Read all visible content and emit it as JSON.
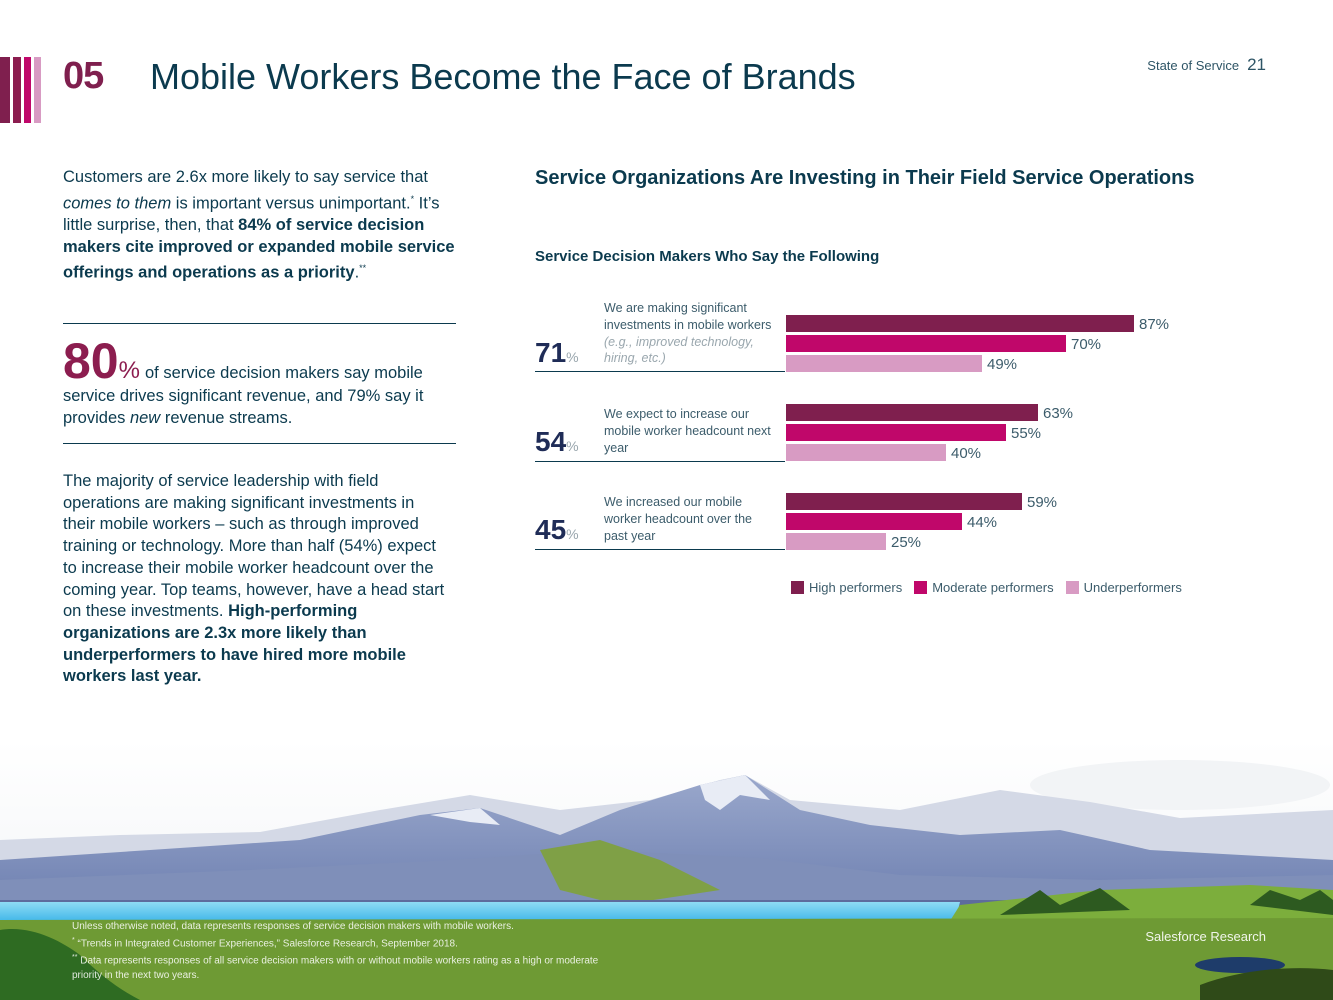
{
  "header": {
    "section_number": "05",
    "title": "Mobile Workers Become the Face of Brands",
    "running_head": "State of Service",
    "page_number": "21"
  },
  "intro": {
    "text1": "Customers are 2.6x more likely to say service that ",
    "text1_italic": "comes to them",
    "text1b": " is important versus unimportant.",
    "text1_mark": "*",
    "text2": " It’s little surprise, then, that ",
    "text2_bold": "84% of service decision makers cite improved or expanded mobile service offerings and operations as a priority",
    "text2_end": ".",
    "text2_mark": "**"
  },
  "stat": {
    "value": "80",
    "unit": "%",
    "text1": "of service decision makers say mobile service drives significant revenue, and 79% say it provides ",
    "text1_italic": "new",
    "text1_end": " revenue streams."
  },
  "body": {
    "text": "The majority of service leadership with field operations are making significant investments in their mobile workers – such as through improved training or technology. More than half (54%) expect to increase their mobile worker headcount over the coming year. Top teams, however, have a head start on these investments. ",
    "bold": "High-performing organizations are 2.3x more likely than underperformers to have hired more mobile workers last year."
  },
  "colors": {
    "high": "#7f1f4e",
    "moderate": "#c0076a",
    "under": "#d89bc3",
    "navy": "#0b3a4e"
  },
  "chart_data": {
    "type": "bar",
    "orientation": "horizontal",
    "title": "Service Organizations Are Investing in Their Field Service Operations",
    "subtitle": "Service Decision Makers Who Say the Following",
    "categories": [
      {
        "label": "We are making significant investments in mobile workers",
        "label_italic": "(e.g., improved technology, hiring, etc.)",
        "overall": "71",
        "unit": "%"
      },
      {
        "label": "We expect to increase our mobile worker headcount next year",
        "label_italic": "",
        "overall": "54",
        "unit": "%"
      },
      {
        "label": "We increased our mobile worker headcount over the past year",
        "label_italic": "",
        "overall": "45",
        "unit": "%"
      }
    ],
    "series": [
      {
        "name": "High performers",
        "values": [
          87,
          63,
          59
        ]
      },
      {
        "name": "Moderate performers",
        "values": [
          70,
          55,
          44
        ]
      },
      {
        "name": "Underperformers",
        "values": [
          49,
          40,
          25
        ]
      }
    ],
    "value_suffix": "%",
    "xlim": [
      0,
      100
    ],
    "legend_position": "bottom"
  },
  "footer": {
    "note1": "Unless otherwise noted, data represents responses of service decision makers with mobile workers.",
    "note2": "“Trends in Integrated Customer Experiences,” Salesforce Research, September 2018.",
    "note3": "Data represents responses of all service decision makers with or without mobile workers rating as a high or moderate priority in the next two years.",
    "mark1": "*",
    "mark2": "**",
    "brand": "Salesforce Research"
  }
}
